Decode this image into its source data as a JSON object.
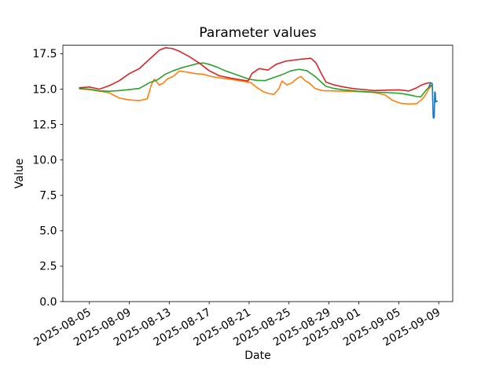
{
  "figure": {
    "background": "#ffffff"
  },
  "chart_data": {
    "type": "line",
    "title": "Parameter values",
    "xlabel": "Date",
    "ylabel": "Value",
    "x_unit": "days since 2025-08-04",
    "xlim": [
      -1.66,
      37.4
    ],
    "ylim": [
      0,
      18.1
    ],
    "grid": false,
    "legend": "none",
    "axis_color": "#000000",
    "text_color": "#000000",
    "yticks": [
      {
        "value": 0.0,
        "label": "0.0"
      },
      {
        "value": 2.5,
        "label": "2.5"
      },
      {
        "value": 5.0,
        "label": "5.0"
      },
      {
        "value": 7.5,
        "label": "7.5"
      },
      {
        "value": 10.0,
        "label": "10.0"
      },
      {
        "value": 12.5,
        "label": "12.5"
      },
      {
        "value": 15.0,
        "label": "15.0"
      },
      {
        "value": 17.5,
        "label": "17.5"
      }
    ],
    "xticks": [
      {
        "day": 1,
        "label": "2025-08-05"
      },
      {
        "day": 5,
        "label": "2025-08-09"
      },
      {
        "day": 9,
        "label": "2025-08-13"
      },
      {
        "day": 13,
        "label": "2025-08-17"
      },
      {
        "day": 17,
        "label": "2025-08-21"
      },
      {
        "day": 21,
        "label": "2025-08-25"
      },
      {
        "day": 25,
        "label": "2025-08-29"
      },
      {
        "day": 28,
        "label": "2025-09-01"
      },
      {
        "day": 32,
        "label": "2025-09-05"
      },
      {
        "day": 36,
        "label": "2025-09-09"
      }
    ],
    "xtick_rotation_deg": 30,
    "series": [
      {
        "name": "orange",
        "color": "#ff7f0e",
        "points": [
          [
            0,
            15.02
          ],
          [
            1,
            14.97
          ],
          [
            2,
            14.86
          ],
          [
            3,
            14.74
          ],
          [
            3.5,
            14.55
          ],
          [
            4,
            14.37
          ],
          [
            5,
            14.24
          ],
          [
            6,
            14.19
          ],
          [
            6.8,
            14.32
          ],
          [
            7.2,
            15.3
          ],
          [
            7.5,
            15.7
          ],
          [
            8,
            15.3
          ],
          [
            8.4,
            15.42
          ],
          [
            8.8,
            15.72
          ],
          [
            9.4,
            15.9
          ],
          [
            10,
            16.28
          ],
          [
            10.8,
            16.2
          ],
          [
            11.6,
            16.1
          ],
          [
            12.4,
            16.05
          ],
          [
            13.2,
            15.9
          ],
          [
            14,
            15.8
          ],
          [
            14.8,
            15.73
          ],
          [
            15.6,
            15.65
          ],
          [
            16.4,
            15.55
          ],
          [
            17.2,
            15.45
          ],
          [
            17.8,
            15.1
          ],
          [
            18.4,
            14.83
          ],
          [
            19,
            14.68
          ],
          [
            19.5,
            14.63
          ],
          [
            20,
            15.05
          ],
          [
            20.3,
            15.57
          ],
          [
            20.8,
            15.3
          ],
          [
            21.3,
            15.45
          ],
          [
            21.8,
            15.75
          ],
          [
            22.2,
            15.9
          ],
          [
            22.6,
            15.6
          ],
          [
            23,
            15.45
          ],
          [
            23.6,
            15.05
          ],
          [
            24.3,
            14.9
          ],
          [
            25.5,
            14.87
          ],
          [
            27,
            14.85
          ],
          [
            28.5,
            14.8
          ],
          [
            29.5,
            14.77
          ],
          [
            30.6,
            14.6
          ],
          [
            31.4,
            14.2
          ],
          [
            32.2,
            14.0
          ],
          [
            33,
            13.95
          ],
          [
            33.8,
            13.97
          ],
          [
            34.5,
            14.4
          ],
          [
            35,
            15.0
          ],
          [
            35.3,
            15.25
          ]
        ]
      },
      {
        "name": "green",
        "color": "#2ca02c",
        "points": [
          [
            0,
            15.05
          ],
          [
            1,
            15.0
          ],
          [
            2,
            14.88
          ],
          [
            3,
            14.85
          ],
          [
            4,
            14.9
          ],
          [
            5,
            14.97
          ],
          [
            6,
            15.05
          ],
          [
            7,
            15.45
          ],
          [
            7.8,
            15.65
          ],
          [
            8.6,
            16.05
          ],
          [
            9.4,
            16.3
          ],
          [
            10.2,
            16.5
          ],
          [
            11,
            16.65
          ],
          [
            11.8,
            16.8
          ],
          [
            12.4,
            16.85
          ],
          [
            13,
            16.75
          ],
          [
            13.8,
            16.55
          ],
          [
            14.6,
            16.3
          ],
          [
            15.4,
            16.1
          ],
          [
            16.2,
            15.9
          ],
          [
            17,
            15.7
          ],
          [
            17.8,
            15.62
          ],
          [
            18.6,
            15.6
          ],
          [
            19.6,
            15.85
          ],
          [
            20.4,
            16.05
          ],
          [
            21.2,
            16.3
          ],
          [
            22,
            16.4
          ],
          [
            22.8,
            16.3
          ],
          [
            23.6,
            15.9
          ],
          [
            24.3,
            15.45
          ],
          [
            24.7,
            15.2
          ],
          [
            25.5,
            15.05
          ],
          [
            26.3,
            14.96
          ],
          [
            27.9,
            14.85
          ],
          [
            29.5,
            14.79
          ],
          [
            31,
            14.75
          ],
          [
            32.2,
            14.7
          ],
          [
            33,
            14.6
          ],
          [
            33.8,
            14.48
          ],
          [
            34.2,
            14.45
          ],
          [
            34.7,
            14.9
          ],
          [
            35.1,
            15.2
          ],
          [
            35.3,
            15.3
          ]
        ]
      },
      {
        "name": "red",
        "color": "#d62728",
        "points": [
          [
            0,
            15.1
          ],
          [
            1,
            15.15
          ],
          [
            2,
            15.0
          ],
          [
            3,
            15.25
          ],
          [
            4,
            15.6
          ],
          [
            5,
            16.1
          ],
          [
            6,
            16.45
          ],
          [
            7,
            17.1
          ],
          [
            8,
            17.75
          ],
          [
            8.6,
            17.92
          ],
          [
            9.3,
            17.87
          ],
          [
            10,
            17.68
          ],
          [
            11,
            17.3
          ],
          [
            12,
            16.85
          ],
          [
            13,
            16.3
          ],
          [
            14,
            15.95
          ],
          [
            15,
            15.8
          ],
          [
            16,
            15.68
          ],
          [
            16.9,
            15.58
          ],
          [
            17.3,
            16.12
          ],
          [
            18,
            16.45
          ],
          [
            18.9,
            16.35
          ],
          [
            19.7,
            16.75
          ],
          [
            20.7,
            16.98
          ],
          [
            22,
            17.1
          ],
          [
            23.2,
            17.18
          ],
          [
            23.7,
            16.85
          ],
          [
            24.2,
            16.15
          ],
          [
            24.7,
            15.5
          ],
          [
            25.5,
            15.3
          ],
          [
            26.5,
            15.15
          ],
          [
            27.5,
            15.03
          ],
          [
            28.5,
            14.97
          ],
          [
            29.5,
            14.9
          ],
          [
            30.7,
            14.93
          ],
          [
            32,
            14.95
          ],
          [
            33,
            14.87
          ],
          [
            33.8,
            15.1
          ],
          [
            34.3,
            15.3
          ],
          [
            34.9,
            15.44
          ],
          [
            35.2,
            15.45
          ]
        ]
      },
      {
        "name": "blue",
        "color": "#1f77b4",
        "points": [
          [
            35.0,
            15.15
          ],
          [
            35.2,
            15.45
          ],
          [
            35.35,
            15.4
          ],
          [
            35.45,
            13.0
          ],
          [
            35.5,
            12.95
          ],
          [
            35.55,
            13.05
          ],
          [
            35.6,
            14.8
          ],
          [
            35.65,
            14.75
          ],
          [
            35.7,
            14.1
          ],
          [
            35.85,
            14.15
          ]
        ]
      }
    ]
  }
}
